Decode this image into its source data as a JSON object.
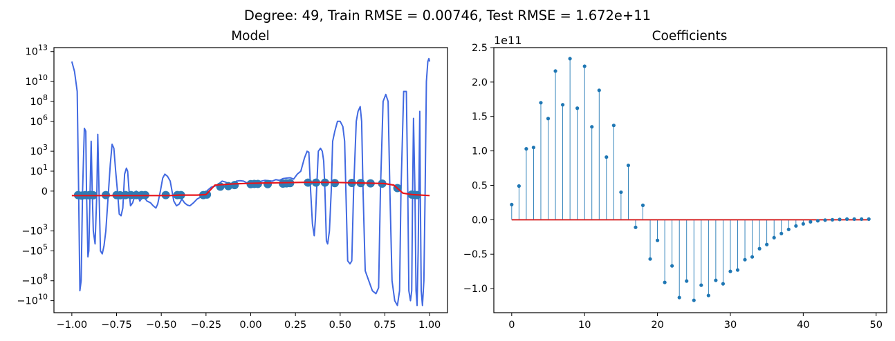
{
  "suptitle": "Degree: 49, Train RMSE = 0.00746, Test RMSE = 1.672e+11",
  "colors": {
    "model_line": "#4169e1",
    "true_function": "#e8151b",
    "points": "#2e7bb4",
    "stems": "#1f77b4",
    "baseline": "#d62728",
    "axes": "#000000"
  },
  "chart_data": [
    {
      "type": "line",
      "title": "Model",
      "xlabel": "",
      "ylabel": "",
      "yscale": "symlog",
      "xlim": [
        -1.1,
        1.1
      ],
      "x_ticks": [
        -1.0,
        -0.75,
        -0.5,
        -0.25,
        0.0,
        0.25,
        0.5,
        0.75,
        1.0
      ],
      "x_tick_labels": [
        "−1.00",
        "−0.75",
        "−0.50",
        "−0.25",
        "0.00",
        "0.25",
        "0.50",
        "0.75",
        "1.00"
      ],
      "y_tick_labels": [
        {
          "base": "10",
          "exp": "13"
        },
        {
          "base": "10",
          "exp": "10"
        },
        {
          "base": "10",
          "exp": "8"
        },
        {
          "base": "10",
          "exp": "6"
        },
        {
          "base": "10",
          "exp": "3"
        },
        {
          "base": "10",
          "exp": "1"
        },
        {
          "base": "0",
          "exp": ""
        },
        {
          "base": "−10",
          "exp": "3"
        },
        {
          "base": "−10",
          "exp": "5"
        },
        {
          "base": "−10",
          "exp": "8"
        },
        {
          "base": "−10",
          "exp": "10"
        }
      ],
      "series": [
        {
          "kind": "model_fit",
          "points": [
            [
              -1.0,
              1000000000000.0
            ],
            [
              -0.985,
              100000000000.0
            ],
            [
              -0.97,
              1000000000.0
            ],
            [
              -0.962,
              0
            ],
            [
              -0.955,
              -1000000000.0
            ],
            [
              -0.948,
              -100000000.0
            ],
            [
              -0.94,
              0
            ],
            [
              -0.93,
              200000.0
            ],
            [
              -0.922,
              100000.0
            ],
            [
              -0.918,
              0
            ],
            [
              -0.91,
              -400000.0
            ],
            [
              -0.905,
              -100000.0
            ],
            [
              -0.898,
              0
            ],
            [
              -0.892,
              10000.0
            ],
            [
              -0.886,
              0
            ],
            [
              -0.88,
              -1000.0
            ],
            [
              -0.87,
              -20000.0
            ],
            [
              -0.86,
              0
            ],
            [
              -0.855,
              50000.0
            ],
            [
              -0.848,
              0
            ],
            [
              -0.84,
              -100000.0
            ],
            [
              -0.83,
              -200000.0
            ],
            [
              -0.82,
              -30000.0
            ],
            [
              -0.81,
              -1000.0
            ],
            [
              -0.795,
              0
            ],
            [
              -0.785,
              50
            ],
            [
              -0.775,
              5000.0
            ],
            [
              -0.765,
              2000.0
            ],
            [
              -0.755,
              10
            ],
            [
              -0.745,
              0
            ],
            [
              -0.735,
              -20
            ],
            [
              -0.725,
              -30
            ],
            [
              -0.715,
              -5
            ],
            [
              -0.705,
              5
            ],
            [
              -0.695,
              20
            ],
            [
              -0.688,
              10
            ],
            [
              -0.68,
              0
            ],
            [
              -0.672,
              -3
            ],
            [
              -0.66,
              -1.5
            ],
            [
              -0.64,
              0
            ],
            [
              -0.62,
              -1
            ],
            [
              -0.6,
              -0.5
            ],
            [
              -0.58,
              -1
            ],
            [
              -0.56,
              -1.5
            ],
            [
              -0.545,
              -3
            ],
            [
              -0.53,
              -5
            ],
            [
              -0.52,
              -2
            ],
            [
              -0.505,
              0
            ],
            [
              -0.492,
              2
            ],
            [
              -0.48,
              5
            ],
            [
              -0.465,
              3
            ],
            [
              -0.45,
              1
            ],
            [
              -0.44,
              0
            ],
            [
              -0.43,
              -1
            ],
            [
              -0.415,
              -3
            ],
            [
              -0.4,
              -2
            ],
            [
              -0.385,
              -0.8
            ],
            [
              -0.37,
              -1.5
            ],
            [
              -0.355,
              -2.5
            ],
            [
              -0.34,
              -3
            ],
            [
              -0.32,
              -1.5
            ],
            [
              -0.3,
              -0.8
            ],
            [
              -0.28,
              -0.6
            ],
            [
              -0.26,
              -0.4
            ],
            [
              -0.24,
              0.1
            ],
            [
              -0.22,
              0.4
            ],
            [
              -0.2,
              0.5
            ],
            [
              -0.18,
              0.7
            ],
            [
              -0.16,
              1.0
            ],
            [
              -0.14,
              0.9
            ],
            [
              -0.12,
              0.7
            ],
            [
              -0.1,
              0.6
            ],
            [
              -0.08,
              1.0
            ],
            [
              -0.06,
              1.1
            ],
            [
              -0.04,
              1.0
            ],
            [
              -0.02,
              0.8
            ],
            [
              0.0,
              0.8
            ],
            [
              0.02,
              1.0
            ],
            [
              0.04,
              0.9
            ],
            [
              0.06,
              1.0
            ],
            [
              0.08,
              1.2
            ],
            [
              0.1,
              1.1
            ],
            [
              0.12,
              1.0
            ],
            [
              0.14,
              1.4
            ],
            [
              0.16,
              1.2
            ],
            [
              0.18,
              1.8
            ],
            [
              0.2,
              2.0
            ],
            [
              0.22,
              2.2
            ],
            [
              0.24,
              1.6
            ],
            [
              0.26,
              5
            ],
            [
              0.28,
              10
            ],
            [
              0.3,
              200
            ],
            [
              0.315,
              1000.0
            ],
            [
              0.325,
              800
            ],
            [
              0.335,
              0
            ],
            [
              0.345,
              -200
            ],
            [
              0.355,
              -3000.0
            ],
            [
              0.362,
              -50
            ],
            [
              0.368,
              0
            ],
            [
              0.378,
              1000.0
            ],
            [
              0.39,
              2000.0
            ],
            [
              0.4,
              1000.0
            ],
            [
              0.408,
              100
            ],
            [
              0.415,
              0
            ],
            [
              0.423,
              -10000.0
            ],
            [
              0.43,
              -20000.0
            ],
            [
              0.44,
              -1000.0
            ],
            [
              0.45,
              0
            ],
            [
              0.458,
              10000.0
            ],
            [
              0.47,
              100000.0
            ],
            [
              0.485,
              1000000.0
            ],
            [
              0.5,
              1000000.0
            ],
            [
              0.515,
              300000.0
            ],
            [
              0.525,
              10000.0
            ],
            [
              0.532,
              0
            ],
            [
              0.542,
              -1000000.0
            ],
            [
              0.555,
              -2000000.0
            ],
            [
              0.565,
              -1000000.0
            ],
            [
              0.575,
              0
            ],
            [
              0.59,
              1000000.0
            ],
            [
              0.6,
              10000000.0
            ],
            [
              0.612,
              30000000.0
            ],
            [
              0.62,
              1000000.0
            ],
            [
              0.628,
              0
            ],
            [
              0.64,
              -10000000.0
            ],
            [
              0.66,
              -100000000.0
            ],
            [
              0.68,
              -1000000000.0
            ],
            [
              0.7,
              -2000000000.0
            ],
            [
              0.715,
              -500000000.0
            ],
            [
              0.725,
              0
            ],
            [
              0.74,
              100000000.0
            ],
            [
              0.755,
              500000000.0
            ],
            [
              0.768,
              100000000.0
            ],
            [
              0.778,
              0
            ],
            [
              0.79,
              -100000000.0
            ],
            [
              0.805,
              -10000000000.0
            ],
            [
              0.82,
              -30000000000.0
            ],
            [
              0.832,
              -1000000000.0
            ],
            [
              0.84,
              0
            ],
            [
              0.855,
              1000000000.0
            ],
            [
              0.87,
              1000000000.0
            ],
            [
              0.878,
              0
            ],
            [
              0.884,
              -1000000000.0
            ],
            [
              0.893,
              -10000000000.0
            ],
            [
              0.9,
              -1000000000.0
            ],
            [
              0.905,
              0
            ],
            [
              0.91,
              2000000.0
            ],
            [
              0.918,
              0
            ],
            [
              0.924,
              -1000000000.0
            ],
            [
              0.93,
              -30000000000.0
            ],
            [
              0.936,
              -100000.0
            ],
            [
              0.94,
              0
            ],
            [
              0.945,
              10000000.0
            ],
            [
              0.948,
              0
            ],
            [
              0.953,
              -1000000000.0
            ],
            [
              0.96,
              -30000000000.0
            ],
            [
              0.968,
              -100000000.0
            ],
            [
              0.975,
              0
            ],
            [
              0.982,
              10000000000.0
            ],
            [
              0.99,
              1000000000000.0
            ],
            [
              0.996,
              2000000000000.0
            ],
            [
              1.0,
              1000000000000.0
            ]
          ]
        },
        {
          "kind": "true_function",
          "points": [
            [
              -1.0,
              -0.45
            ],
            [
              -0.9,
              -0.45
            ],
            [
              -0.8,
              -0.45
            ],
            [
              -0.7,
              -0.45
            ],
            [
              -0.6,
              -0.45
            ],
            [
              -0.5,
              -0.45
            ],
            [
              -0.45,
              -0.45
            ],
            [
              -0.4,
              -0.4
            ],
            [
              -0.3,
              -0.4
            ],
            [
              -0.25,
              -0.35
            ],
            [
              -0.2,
              0.6
            ],
            [
              -0.1,
              0.72
            ],
            [
              0.0,
              0.78
            ],
            [
              0.1,
              0.82
            ],
            [
              0.2,
              0.85
            ],
            [
              0.3,
              0.88
            ],
            [
              0.4,
              0.88
            ],
            [
              0.5,
              0.86
            ],
            [
              0.6,
              0.82
            ],
            [
              0.7,
              0.78
            ],
            [
              0.75,
              0.75
            ],
            [
              0.8,
              0.6
            ],
            [
              0.85,
              -0.2
            ],
            [
              0.9,
              -0.35
            ],
            [
              1.0,
              -0.45
            ]
          ]
        }
      ],
      "samples": [
        [
          -0.965,
          -0.4
        ],
        [
          -0.945,
          -0.45
        ],
        [
          -0.925,
          -0.4
        ],
        [
          -0.905,
          -0.42
        ],
        [
          -0.895,
          -0.38
        ],
        [
          -0.88,
          -0.42
        ],
        [
          -0.81,
          -0.4
        ],
        [
          -0.75,
          -0.4
        ],
        [
          -0.73,
          -0.42
        ],
        [
          -0.7,
          -0.4
        ],
        [
          -0.67,
          -0.4
        ],
        [
          -0.64,
          -0.4
        ],
        [
          -0.61,
          -0.4
        ],
        [
          -0.59,
          -0.4
        ],
        [
          -0.475,
          -0.4
        ],
        [
          -0.41,
          -0.4
        ],
        [
          -0.39,
          -0.4
        ],
        [
          -0.265,
          -0.4
        ],
        [
          -0.245,
          -0.35
        ],
        [
          -0.17,
          0.45
        ],
        [
          -0.125,
          0.5
        ],
        [
          -0.09,
          0.6
        ],
        [
          0.0,
          0.7
        ],
        [
          0.02,
          0.72
        ],
        [
          0.04,
          0.72
        ],
        [
          0.095,
          0.7
        ],
        [
          0.18,
          0.75
        ],
        [
          0.2,
          0.78
        ],
        [
          0.22,
          0.8
        ],
        [
          0.32,
          0.85
        ],
        [
          0.365,
          0.85
        ],
        [
          0.415,
          0.85
        ],
        [
          0.47,
          0.8
        ],
        [
          0.565,
          0.82
        ],
        [
          0.615,
          0.8
        ],
        [
          0.67,
          0.78
        ],
        [
          0.735,
          0.75
        ],
        [
          0.82,
          0.3
        ],
        [
          0.9,
          -0.35
        ],
        [
          0.915,
          -0.38
        ],
        [
          0.93,
          -0.4
        ]
      ]
    },
    {
      "type": "stem",
      "title": "Coefficients",
      "xlabel": "",
      "ylabel": "",
      "offset_text": "1e11",
      "xlim": [
        -2.45,
        51.45
      ],
      "ylim": [
        -1.35,
        2.5
      ],
      "x_ticks": [
        0,
        10,
        20,
        30,
        40,
        50
      ],
      "x_tick_labels": [
        "0",
        "10",
        "20",
        "30",
        "40",
        "50"
      ],
      "y_ticks": [
        -1.0,
        -0.5,
        0.0,
        0.5,
        1.0,
        1.5,
        2.0,
        2.5
      ],
      "y_tick_labels": [
        "−1.0",
        "−0.5",
        "0.0",
        "0.5",
        "1.0",
        "1.5",
        "2.0",
        "2.5"
      ],
      "x": [
        0,
        1,
        2,
        3,
        4,
        5,
        6,
        7,
        8,
        9,
        10,
        11,
        12,
        13,
        14,
        15,
        16,
        17,
        18,
        19,
        20,
        21,
        22,
        23,
        24,
        25,
        26,
        27,
        28,
        29,
        30,
        31,
        32,
        33,
        34,
        35,
        36,
        37,
        38,
        39,
        40,
        41,
        42,
        43,
        44,
        45,
        46,
        47,
        48,
        49
      ],
      "values": [
        0.22,
        0.49,
        1.03,
        1.05,
        1.7,
        1.47,
        2.16,
        1.67,
        2.34,
        1.62,
        2.23,
        1.35,
        1.88,
        0.91,
        1.37,
        0.4,
        0.79,
        -0.11,
        0.21,
        -0.57,
        -0.3,
        -0.91,
        -0.67,
        -1.13,
        -0.89,
        -1.17,
        -0.95,
        -1.1,
        -0.88,
        -0.93,
        -0.75,
        -0.73,
        -0.58,
        -0.54,
        -0.42,
        -0.36,
        -0.26,
        -0.2,
        -0.14,
        -0.09,
        -0.06,
        -0.03,
        -0.015,
        -0.005,
        0.0,
        0.005,
        0.01,
        0.01,
        0.01,
        0.01
      ]
    }
  ]
}
